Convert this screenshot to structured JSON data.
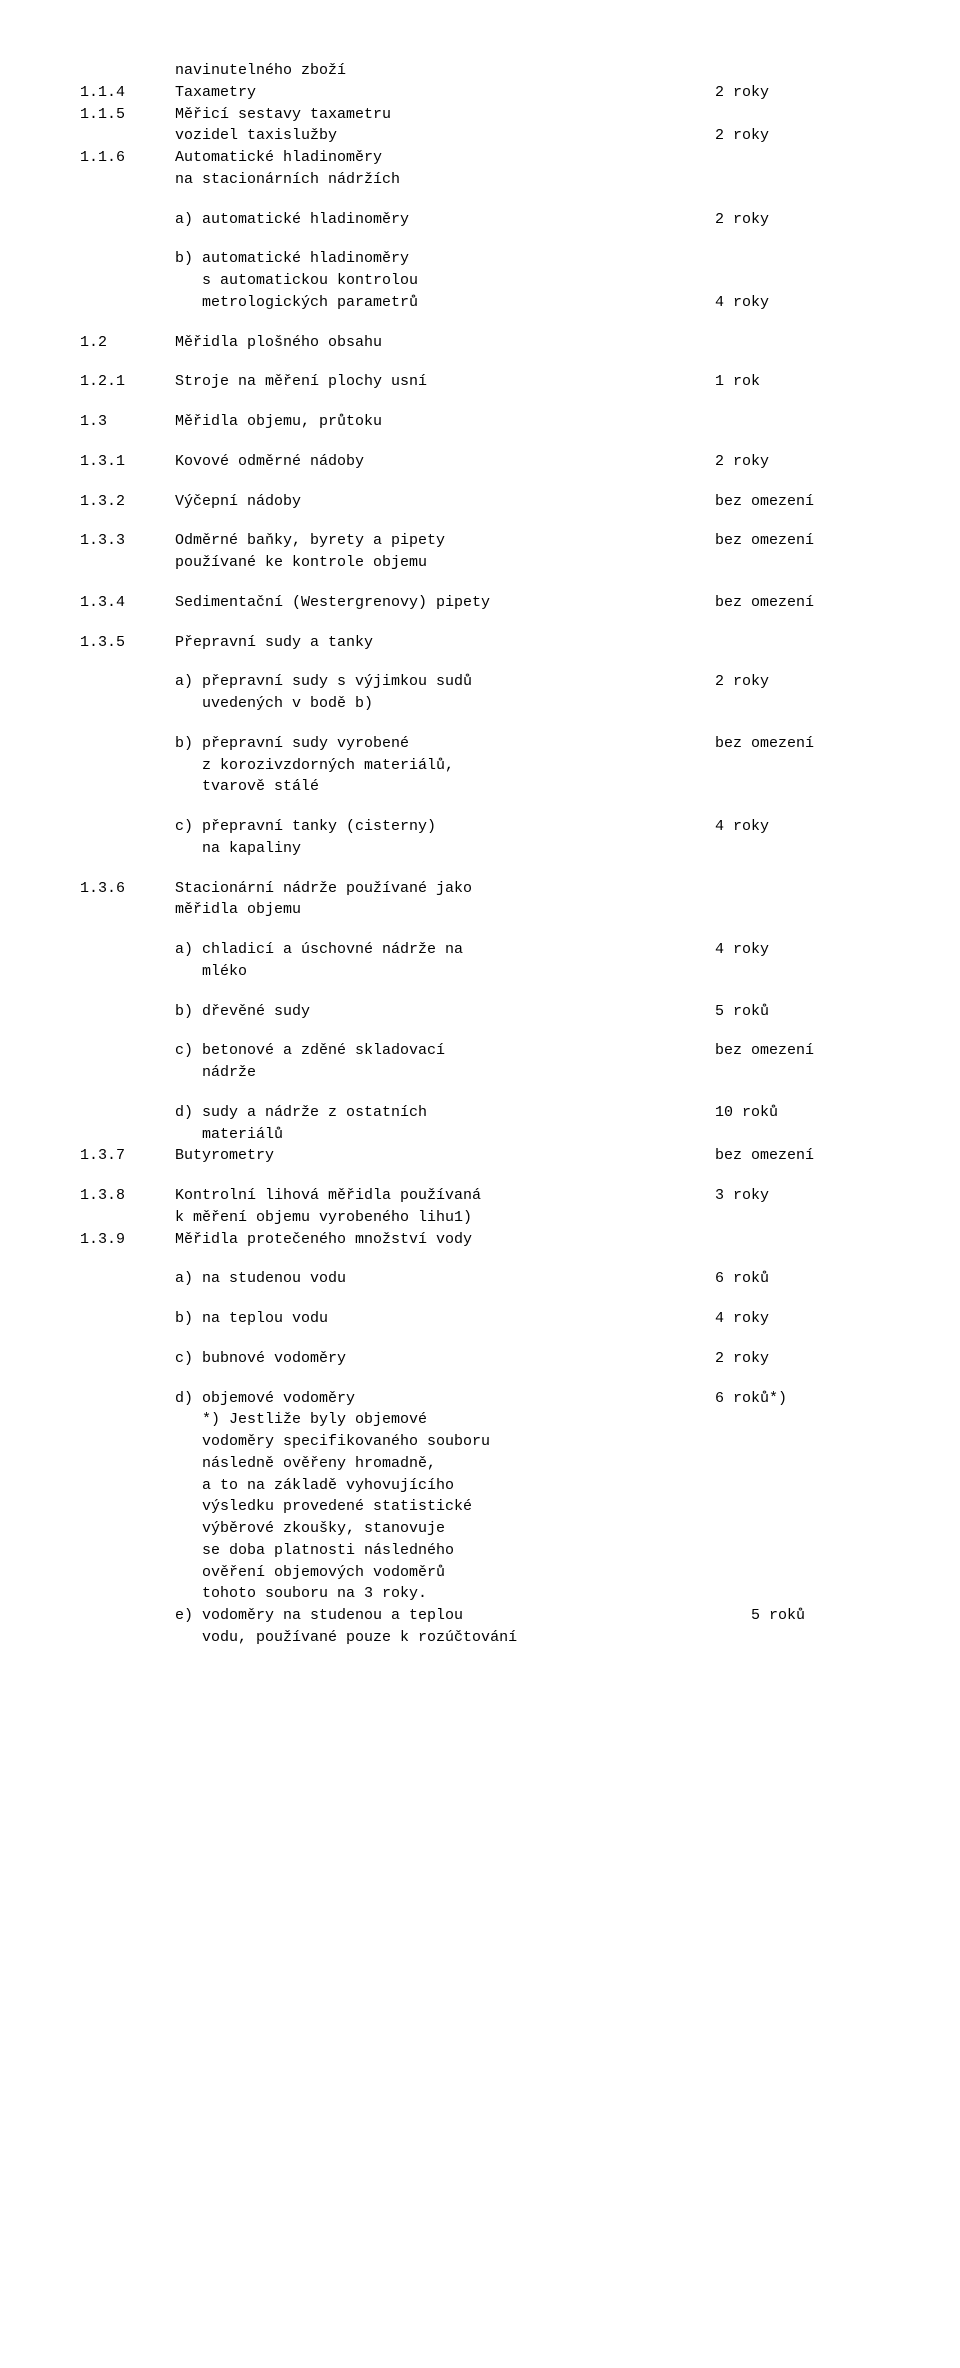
{
  "colors": {
    "background": "#ffffff",
    "text": "#000000"
  },
  "font": {
    "family": "Courier New",
    "size_pt": 11
  },
  "rows": [
    {
      "num": "",
      "text": "navinutelného zboží",
      "val": ""
    },
    {
      "num": "1.1.4",
      "text": "Taxametry",
      "val": "2 roky"
    },
    {
      "num": "1.1.5",
      "text": "Měřicí sestavy taxametru",
      "val": ""
    },
    {
      "num": "",
      "text": "vozidel taxislužby",
      "val": "2 roky"
    },
    {
      "num": "1.1.6",
      "text": "Automatické hladinoměry",
      "val": ""
    },
    {
      "num": "",
      "text": "na stacionárních nádržích",
      "val": ""
    },
    {
      "gap": true
    },
    {
      "num": "",
      "text": "a) automatické hladinoměry",
      "val": "2 roky"
    },
    {
      "gap": true
    },
    {
      "num": "",
      "text": "b) automatické hladinoměry",
      "val": ""
    },
    {
      "num": "",
      "text": "   s automatickou kontrolou",
      "val": ""
    },
    {
      "num": "",
      "text": "   metrologických parametrů",
      "val": "4 roky"
    },
    {
      "gap": true
    },
    {
      "num": "1.2",
      "text": "Měřidla plošného obsahu",
      "val": ""
    },
    {
      "gap": true
    },
    {
      "num": "1.2.1",
      "text": "Stroje na měření plochy usní",
      "val": "1 rok"
    },
    {
      "gap": true
    },
    {
      "num": "1.3",
      "text": "Měřidla objemu, průtoku",
      "val": ""
    },
    {
      "gap": true
    },
    {
      "num": "1.3.1",
      "text": "Kovové odměrné nádoby",
      "val": "2 roky"
    },
    {
      "gap": true
    },
    {
      "num": "1.3.2",
      "text": "Výčepní nádoby",
      "val": "bez omezení"
    },
    {
      "gap": true
    },
    {
      "num": "1.3.3",
      "text": "Odměrné baňky, byrety a pipety",
      "val": "bez omezení"
    },
    {
      "num": "",
      "text": "používané ke kontrole objemu",
      "val": ""
    },
    {
      "gap": true
    },
    {
      "num": "1.3.4",
      "text": "Sedimentační (Westergrenovy) pipety",
      "val": "bez omezení"
    },
    {
      "gap": true
    },
    {
      "num": "1.3.5",
      "text": "Přepravní sudy a tanky",
      "val": ""
    },
    {
      "gap": true
    },
    {
      "num": "",
      "text": "a) přepravní sudy s výjimkou sudů",
      "val": "2 roky"
    },
    {
      "num": "",
      "text": "   uvedených v bodě b)",
      "val": ""
    },
    {
      "gap": true
    },
    {
      "num": "",
      "text": "b) přepravní sudy vyrobené",
      "val": "bez omezení"
    },
    {
      "num": "",
      "text": "   z korozivzdorných materiálů,",
      "val": ""
    },
    {
      "num": "",
      "text": "   tvarově stálé",
      "val": ""
    },
    {
      "gap": true
    },
    {
      "num": "",
      "text": "c) přepravní tanky (cisterny)",
      "val": "4 roky"
    },
    {
      "num": "",
      "text": "   na kapaliny",
      "val": ""
    },
    {
      "gap": true
    },
    {
      "num": "1.3.6",
      "text": "Stacionární nádrže používané jako",
      "val": ""
    },
    {
      "num": "",
      "text": "měřidla objemu",
      "val": ""
    },
    {
      "gap": true
    },
    {
      "num": "",
      "text": "a) chladicí a úschovné nádrže na",
      "val": "4 roky"
    },
    {
      "num": "",
      "text": "   mléko",
      "val": ""
    },
    {
      "gap": true
    },
    {
      "num": "",
      "text": "b) dřevěné sudy",
      "val": "5 roků"
    },
    {
      "gap": true
    },
    {
      "num": "",
      "text": "c) betonové a zděné skladovací",
      "val": "bez omezení"
    },
    {
      "num": "",
      "text": "   nádrže",
      "val": ""
    },
    {
      "gap": true
    },
    {
      "num": "",
      "text": "d) sudy a nádrže z ostatních",
      "val": "10 roků"
    },
    {
      "num": "",
      "text": "   materiálů",
      "val": ""
    },
    {
      "num": "1.3.7",
      "text": "Butyrometry",
      "val": "bez omezení"
    },
    {
      "gap": true
    },
    {
      "num": "1.3.8",
      "text": "Kontrolní lihová měřidla používaná",
      "val": "3 roky"
    },
    {
      "num": "",
      "text": "k měření objemu vyrobeného lihu1)",
      "val": ""
    },
    {
      "num": "1.3.9",
      "text": "Měřidla protečeného množství vody",
      "val": ""
    },
    {
      "gap": true
    },
    {
      "num": "",
      "text": "a) na studenou vodu",
      "val": "6 roků"
    },
    {
      "gap": true
    },
    {
      "num": "",
      "text": "b) na teplou vodu",
      "val": "4 roky"
    },
    {
      "gap": true
    },
    {
      "num": "",
      "text": "c) bubnové vodoměry",
      "val": "2 roky"
    },
    {
      "gap": true
    },
    {
      "num": "",
      "text": "d) objemové vodoměry",
      "val": "6 roků*)"
    },
    {
      "num": "",
      "text": "   *) Jestliže byly objemové",
      "val": ""
    },
    {
      "num": "",
      "text": "   vodoměry specifikovaného souboru",
      "val": ""
    },
    {
      "num": "",
      "text": "   následně ověřeny hromadně,",
      "val": ""
    },
    {
      "num": "",
      "text": "   a to na základě vyhovujícího",
      "val": ""
    },
    {
      "num": "",
      "text": "   výsledku provedené statistické",
      "val": ""
    },
    {
      "num": "",
      "text": "   výběrové zkoušky, stanovuje",
      "val": ""
    },
    {
      "num": "",
      "text": "   se doba platnosti následného",
      "val": ""
    },
    {
      "num": "",
      "text": "   ověření objemových vodoměrů",
      "val": ""
    },
    {
      "num": "",
      "text": "   tohoto souboru na 3 roky.",
      "val": ""
    },
    {
      "num": "",
      "text": "e) vodoměry na studenou a teplou",
      "val": "    5 roků"
    },
    {
      "num": "",
      "text": "   vodu, používané pouze k rozúčtování",
      "val": ""
    }
  ]
}
